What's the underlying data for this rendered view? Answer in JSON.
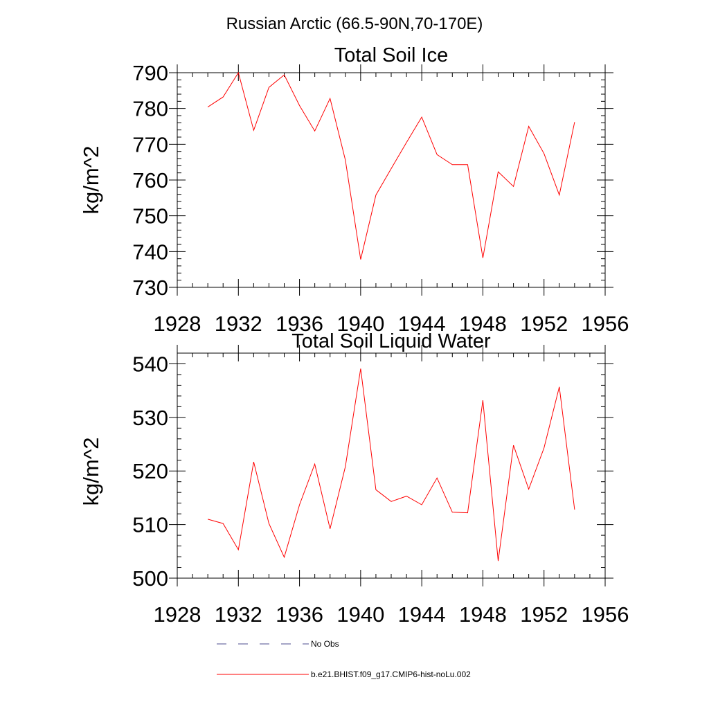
{
  "figure": {
    "suptitle": "Russian Arctic (66.5-90N,70-170E)"
  },
  "legend": {
    "placement": "bottom-center",
    "entries": [
      {
        "label": "No Obs",
        "color": "#4b4b8c",
        "dash": "dashed"
      },
      {
        "label": "b.e21.BHIST.f09_g17.CMIP6-hist-noLu.002",
        "color": "#ff0000",
        "dash": "solid"
      }
    ]
  },
  "chart_data": [
    {
      "type": "line",
      "title": "Total Soil Ice",
      "xlabel": "",
      "ylabel": "kg/m^2",
      "xlim": [
        1928,
        1956
      ],
      "ylim": [
        730,
        790
      ],
      "xticks": [
        1928,
        1932,
        1936,
        1940,
        1944,
        1948,
        1952,
        1956
      ],
      "yticks": [
        730,
        740,
        750,
        760,
        770,
        780,
        790
      ],
      "xminor": 1,
      "yminor": 2,
      "grid": false,
      "series": [
        {
          "color": "#ff0000",
          "x": [
            1930,
            1931,
            1932,
            1933,
            1934,
            1935,
            1936,
            1937,
            1938,
            1939,
            1940,
            1941,
            1942,
            1943,
            1944,
            1945,
            1946,
            1947,
            1948,
            1949,
            1950,
            1951,
            1952,
            1953,
            1954
          ],
          "y": [
            780.4,
            783.2,
            790.0,
            773.9,
            785.9,
            789.4,
            780.8,
            773.7,
            782.8,
            765.6,
            737.8,
            755.8,
            763.2,
            770.5,
            777.6,
            767.1,
            764.3,
            764.3,
            738.2,
            762.3,
            758.2,
            775.0,
            767.4,
            755.8,
            776.2
          ]
        }
      ]
    },
    {
      "type": "line",
      "title": "Total Soil Liquid Water",
      "xlabel": "",
      "ylabel": "kg/m^2",
      "xlim": [
        1928,
        1956
      ],
      "ylim": [
        500,
        542
      ],
      "xticks": [
        1928,
        1932,
        1936,
        1940,
        1944,
        1948,
        1952,
        1956
      ],
      "yticks": [
        500,
        510,
        520,
        530,
        540
      ],
      "xminor": 1,
      "yminor": 2,
      "grid": false,
      "series": [
        {
          "color": "#ff0000",
          "x": [
            1930,
            1931,
            1932,
            1933,
            1934,
            1935,
            1936,
            1937,
            1938,
            1939,
            1940,
            1941,
            1942,
            1943,
            1944,
            1945,
            1946,
            1947,
            1948,
            1949,
            1950,
            1951,
            1952,
            1953,
            1954
          ],
          "y": [
            511.0,
            510.2,
            505.3,
            521.7,
            510.2,
            503.9,
            513.7,
            521.3,
            509.2,
            520.8,
            539.1,
            516.5,
            514.3,
            515.3,
            513.7,
            518.7,
            512.3,
            512.2,
            533.2,
            503.2,
            524.8,
            516.6,
            524.3,
            535.7,
            512.8
          ]
        }
      ]
    }
  ]
}
